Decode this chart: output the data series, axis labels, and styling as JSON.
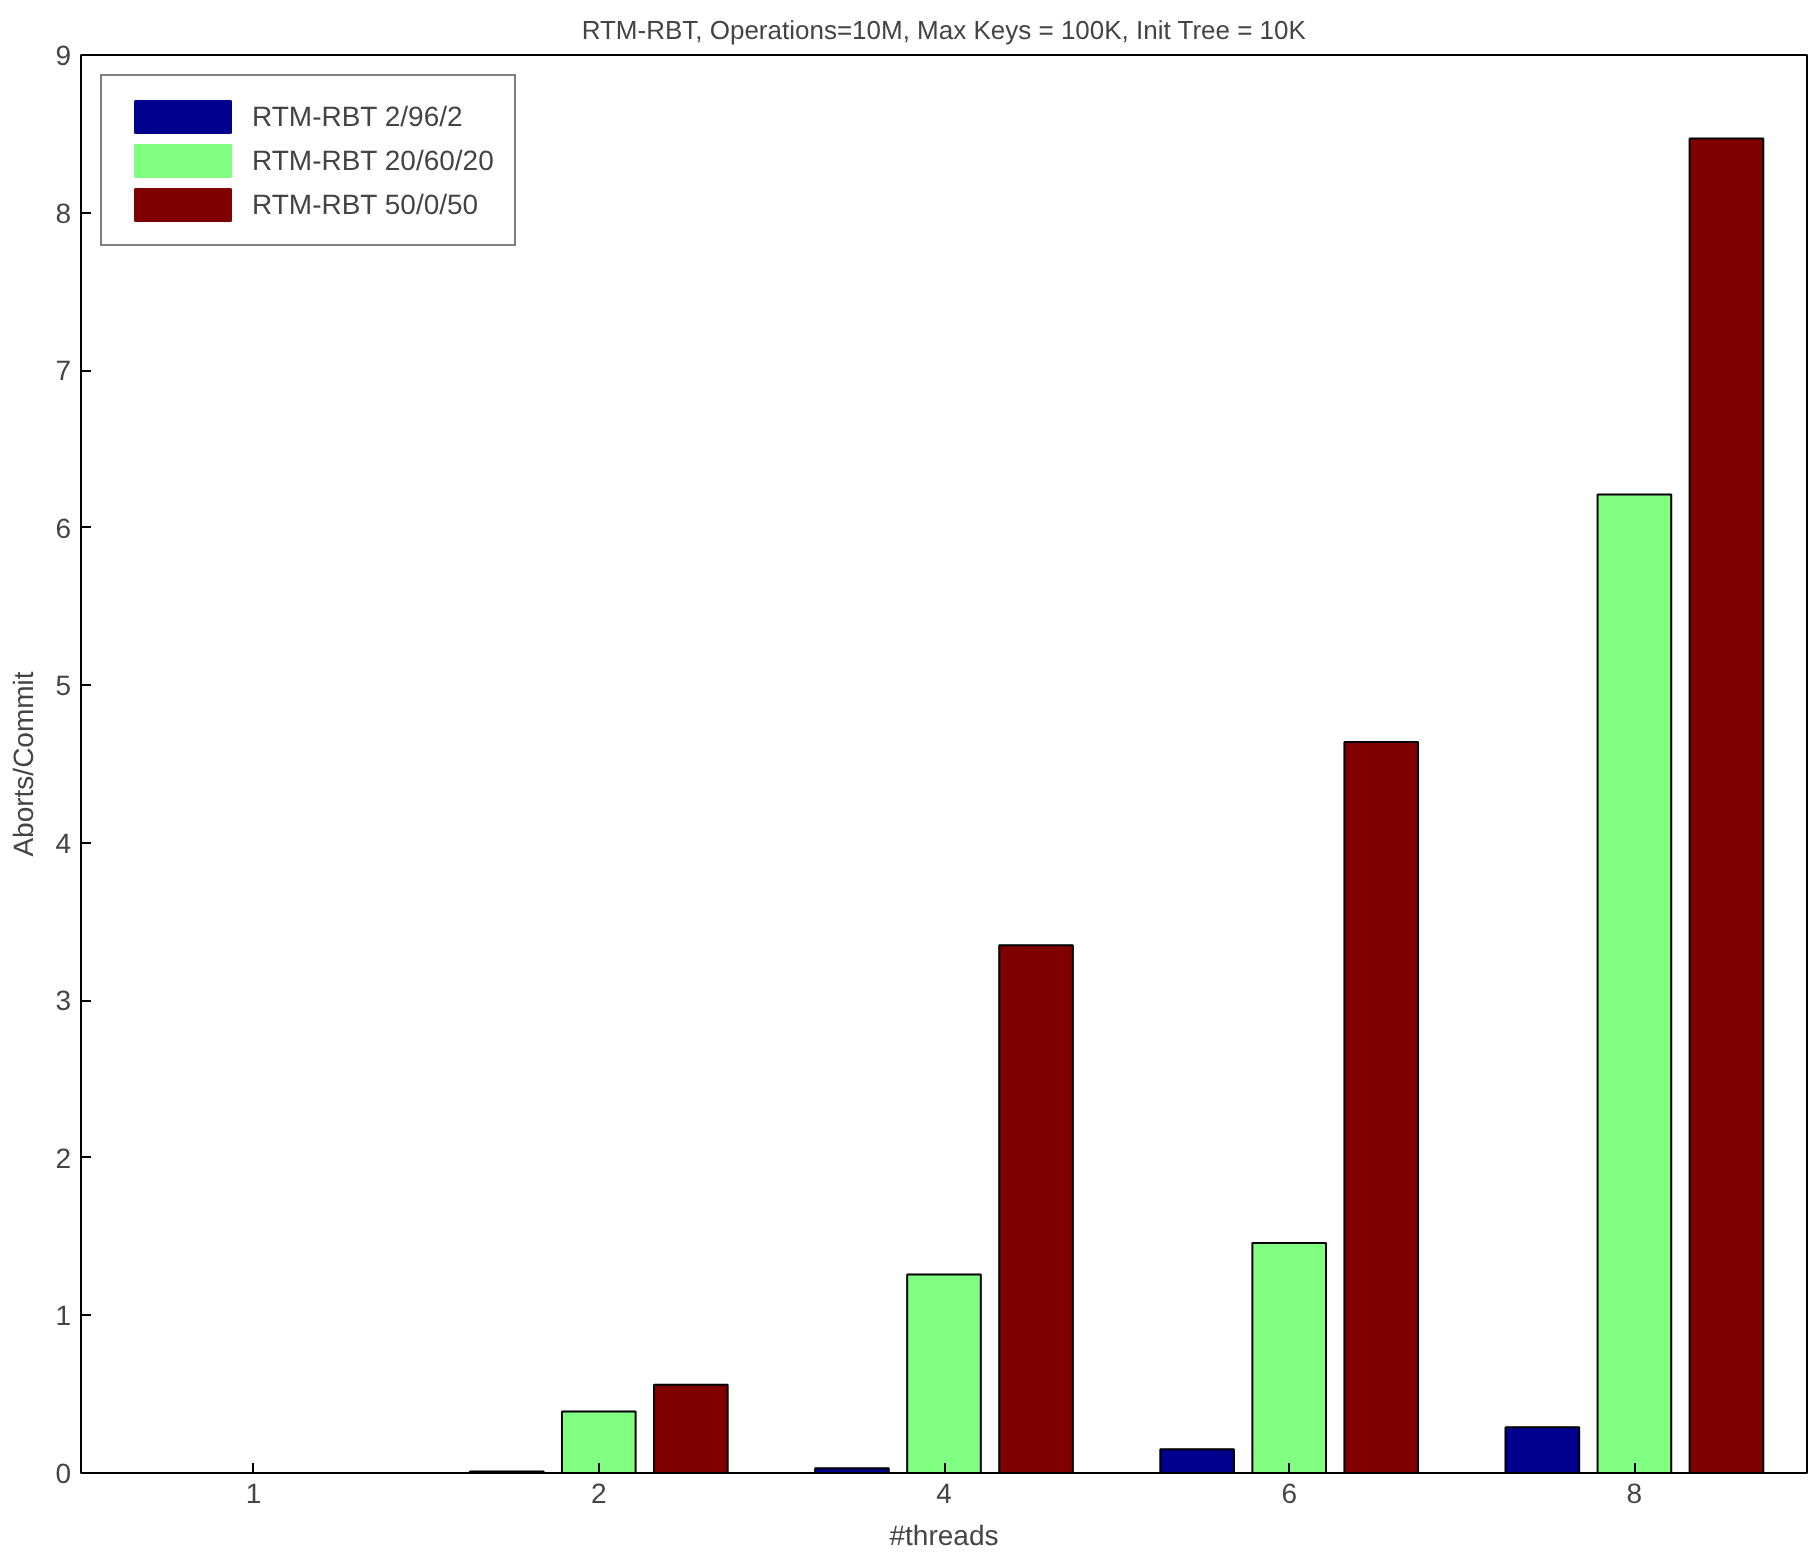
{
  "chart_data": {
    "type": "bar",
    "title": "RTM-RBT, Operations=10M, Max Keys = 100K, Init Tree = 10K",
    "xlabel": "#threads",
    "ylabel": "Aborts/Commit",
    "categories": [
      "1",
      "2",
      "4",
      "6",
      "8"
    ],
    "series": [
      {
        "name": "RTM-RBT 2/96/2",
        "color": "#00008f",
        "values": [
          0,
          0.01,
          0.03,
          0.15,
          0.29
        ]
      },
      {
        "name": "RTM-RBT 20/60/20",
        "color": "#80ff80",
        "values": [
          0,
          0.39,
          1.26,
          1.46,
          6.21
        ]
      },
      {
        "name": "RTM-RBT 50/0/50",
        "color": "#800000",
        "values": [
          0,
          0.56,
          3.35,
          4.64,
          8.47
        ]
      }
    ],
    "ylim": [
      0,
      9
    ],
    "yticks": [
      0,
      1,
      2,
      3,
      4,
      5,
      6,
      7,
      8,
      9
    ],
    "grid": false,
    "legend": "top left"
  }
}
